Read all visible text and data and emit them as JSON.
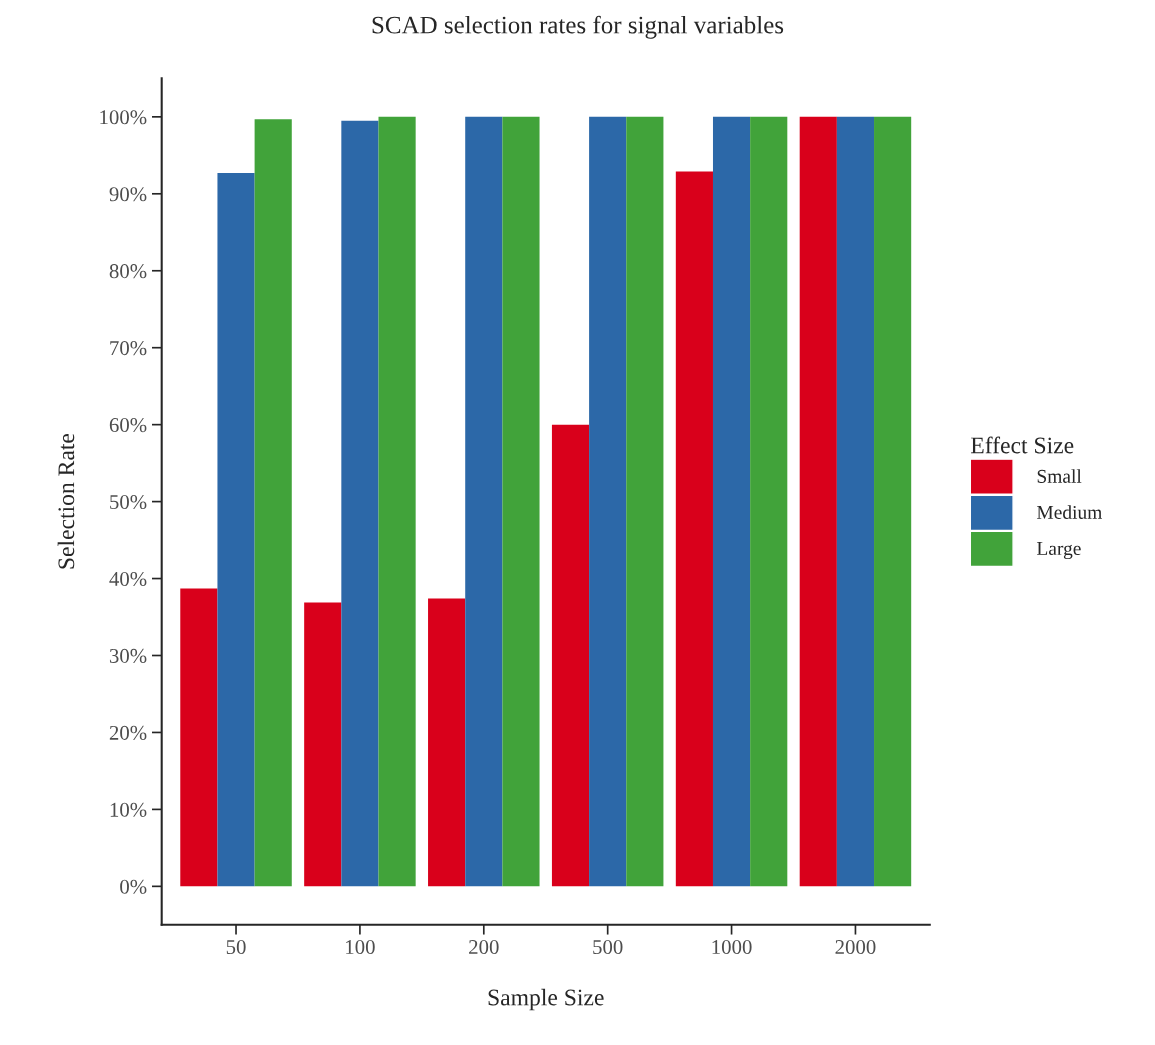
{
  "chart_data": {
    "type": "bar",
    "title": "SCAD selection rates for signal variables",
    "xlabel": "Sample Size",
    "ylabel": "Selection Rate",
    "legend_title": "Effect Size",
    "categories": [
      "50",
      "100",
      "200",
      "500",
      "1000",
      "2000"
    ],
    "series": [
      {
        "name": "Small",
        "color": "#d9001b",
        "values": [
          38.7,
          36.9,
          37.4,
          60,
          92.9,
          100
        ]
      },
      {
        "name": "Medium",
        "color": "#2c68a8",
        "values": [
          92.7,
          99.5,
          100,
          100,
          100,
          100
        ]
      },
      {
        "name": "Large",
        "color": "#41a33a",
        "values": [
          99.7,
          100,
          100,
          100,
          100,
          100
        ]
      }
    ],
    "ylim": [
      -5,
      105
    ],
    "yticks": [
      {
        "value": 0,
        "label": "0%"
      },
      {
        "value": 10,
        "label": "10%"
      },
      {
        "value": 20,
        "label": "20%"
      },
      {
        "value": 30,
        "label": "30%"
      },
      {
        "value": 40,
        "label": "40%"
      },
      {
        "value": 50,
        "label": "50%"
      },
      {
        "value": 60,
        "label": "60%"
      },
      {
        "value": 70,
        "label": "70%"
      },
      {
        "value": 80,
        "label": "80%"
      },
      {
        "value": 90,
        "label": "90%"
      },
      {
        "value": 100,
        "label": "100%"
      }
    ],
    "grid": false,
    "legend": "right"
  }
}
